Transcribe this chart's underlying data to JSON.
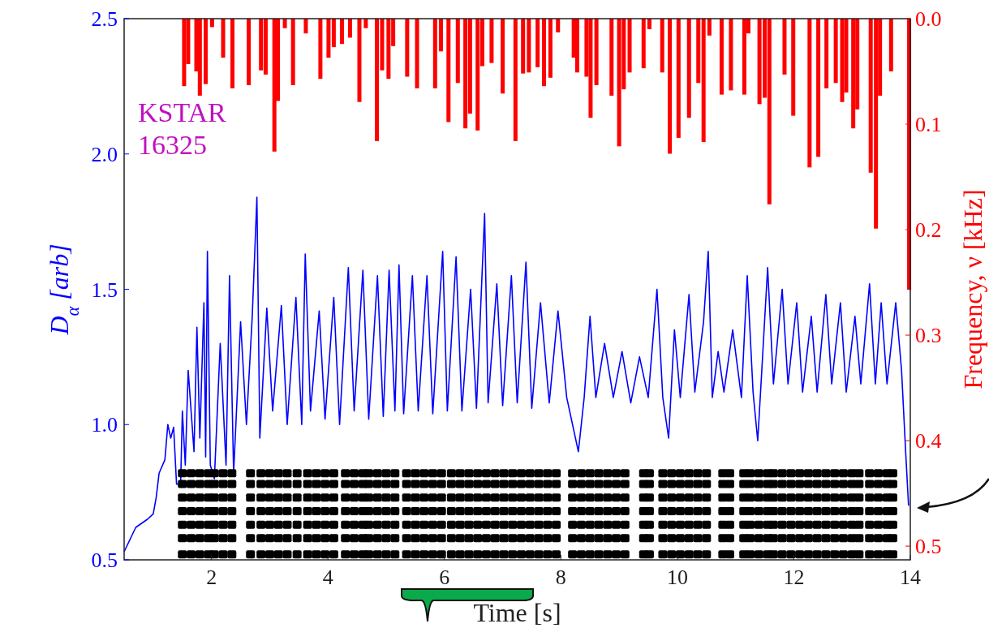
{
  "chart_data": {
    "type": "line",
    "xlabel": "Time [s]",
    "ylabel": "D$_{α}$ [arb]",
    "y2label": "Frequency, ν [kHz]",
    "annotations": [
      "KSTAR",
      "16325"
    ],
    "xlim": [
      0.5,
      14
    ],
    "xticks": [
      2,
      4,
      6,
      8,
      10,
      12,
      14
    ],
    "ylim": [
      0.5,
      2.5
    ],
    "yticks": [
      {
        "value": 0.5,
        "label": "0.5"
      },
      {
        "value": 1,
        "label": "1.0"
      },
      {
        "value": 1.5,
        "label": "1.5"
      },
      {
        "value": 2,
        "label": "2.0"
      },
      {
        "value": 2.5,
        "label": "2.5"
      }
    ],
    "y2lim": [
      0.513,
      0
    ],
    "y2ticks": [
      {
        "value": 0,
        "label": "0.0"
      },
      {
        "value": 0.1,
        "label": "0.1"
      },
      {
        "value": 0.2,
        "label": "0.2"
      },
      {
        "value": 0.3,
        "label": "0.3"
      },
      {
        "value": 0.4,
        "label": "0.4"
      },
      {
        "value": 0.5,
        "label": "0.5"
      }
    ],
    "grid": false,
    "x": [
      1.5,
      1.65,
      1.8,
      1.95,
      2.05,
      2.2,
      2.35,
      2.67,
      2.85,
      3.0,
      3.15,
      3.3,
      3.47,
      3.65,
      3.8,
      3.95,
      4.1,
      4.3,
      4.45,
      4.6,
      4.7,
      4.85,
      5.0,
      5.15,
      5.35,
      5.5,
      5.65,
      5.8,
      5.95,
      6.12,
      6.27,
      6.42,
      6.57,
      6.72,
      6.87,
      7.02,
      7.17,
      7.32,
      7.47,
      7.62,
      7.77,
      7.92,
      8.2,
      8.35,
      8.5,
      8.65,
      8.8,
      8.95,
      9.1,
      9.42,
      9.52,
      9.75,
      9.9,
      10.05,
      10.2,
      10.35,
      10.5,
      10.78,
      10.9,
      11.14,
      11.25,
      11.4,
      11.55,
      11.65,
      11.8,
      11.95,
      12.1,
      12.25,
      12.4,
      12.55,
      12.7,
      12.85,
      13.0,
      13.12,
      13.3,
      13.45,
      13.6,
      13.7
    ],
    "series": [
      {
        "color": "#0000ff",
        "x": [
          0.5,
          0.7,
          0.9,
          1.0,
          1.05,
          1.1,
          1.2,
          1.25,
          1.3,
          1.35,
          1.4,
          1.47,
          1.5,
          1.55,
          1.6,
          1.7,
          1.75,
          1.8,
          1.87,
          1.9,
          1.93,
          1.98,
          2.05,
          2.15,
          2.25,
          2.31,
          2.38,
          2.5,
          2.6,
          2.7,
          2.78,
          2.83,
          2.95,
          3.05,
          3.2,
          3.3,
          3.45,
          3.55,
          3.61,
          3.7,
          3.85,
          3.95,
          4.1,
          4.2,
          4.35,
          4.45,
          4.6,
          4.7,
          4.85,
          4.95,
          5.05,
          5.15,
          5.22,
          5.3,
          5.45,
          5.55,
          5.7,
          5.8,
          5.97,
          6.05,
          6.2,
          6.3,
          6.45,
          6.55,
          6.69,
          6.75,
          6.9,
          7.0,
          7.15,
          7.25,
          7.4,
          7.5,
          7.65,
          7.8,
          7.95,
          8.1,
          8.3,
          8.4,
          8.5,
          8.6,
          8.75,
          8.9,
          9.05,
          9.2,
          9.35,
          9.5,
          9.65,
          9.75,
          9.85,
          9.95,
          10.05,
          10.2,
          10.3,
          10.45,
          10.53,
          10.6,
          10.7,
          10.8,
          10.95,
          11.1,
          11.2,
          11.3,
          11.38,
          11.45,
          11.55,
          11.65,
          11.8,
          11.9,
          12.05,
          12.15,
          12.3,
          12.4,
          12.55,
          12.65,
          12.8,
          12.9,
          13.05,
          13.15,
          13.3,
          13.4,
          13.5,
          13.6,
          13.75,
          13.85,
          13.92,
          13.97
        ],
        "values": [
          0.53,
          0.62,
          0.65,
          0.67,
          0.73,
          0.82,
          0.87,
          1.0,
          0.95,
          0.99,
          0.78,
          0.78,
          1.05,
          0.85,
          1.2,
          0.9,
          1.36,
          0.95,
          1.45,
          0.88,
          1.64,
          0.85,
          0.8,
          1.3,
          0.85,
          1.55,
          0.82,
          1.38,
          1.0,
          1.4,
          1.84,
          0.95,
          1.43,
          1.05,
          1.44,
          1.0,
          1.47,
          1.0,
          1.63,
          1.05,
          1.42,
          1.02,
          1.47,
          1.0,
          1.58,
          1.05,
          1.57,
          1.02,
          1.55,
          1.03,
          1.57,
          1.05,
          1.59,
          1.04,
          1.55,
          1.05,
          1.55,
          1.04,
          1.64,
          1.05,
          1.62,
          1.05,
          1.5,
          1.06,
          1.78,
          1.08,
          1.52,
          1.07,
          1.55,
          1.08,
          1.6,
          1.06,
          1.45,
          1.08,
          1.42,
          1.1,
          0.9,
          1.1,
          1.4,
          1.1,
          1.3,
          1.1,
          1.27,
          1.08,
          1.25,
          1.1,
          1.5,
          1.1,
          0.95,
          1.35,
          1.1,
          1.48,
          1.12,
          1.38,
          1.64,
          1.1,
          1.27,
          1.12,
          1.35,
          1.1,
          1.55,
          1.12,
          0.94,
          1.2,
          1.58,
          1.15,
          1.5,
          1.15,
          1.45,
          1.12,
          1.4,
          1.12,
          1.48,
          1.15,
          1.45,
          1.12,
          1.4,
          1.15,
          1.52,
          1.15,
          1.45,
          1.15,
          1.45,
          1.2,
          0.9,
          0.7
        ]
      },
      {
        "type": "bar",
        "axis": "y2",
        "color": "#ff0000",
        "x": [
          1.53,
          1.6,
          1.74,
          1.8,
          1.9,
          2.01,
          2.2,
          2.36,
          2.64,
          2.85,
          2.93,
          3.08,
          3.14,
          3.26,
          3.4,
          3.62,
          3.87,
          4.01,
          4.1,
          4.24,
          4.38,
          4.54,
          4.65,
          4.84,
          4.93,
          5.04,
          5.12,
          5.36,
          5.53,
          5.84,
          5.94,
          6.07,
          6.23,
          6.36,
          6.44,
          6.57,
          6.65,
          6.81,
          7.0,
          7.22,
          7.35,
          7.45,
          7.6,
          7.71,
          7.82,
          7.95,
          8.22,
          8.28,
          8.44,
          8.51,
          8.61,
          8.87,
          9.0,
          9.08,
          9.18,
          9.42,
          9.52,
          9.74,
          9.87,
          10.02,
          10.2,
          10.36,
          10.45,
          10.55,
          10.76,
          10.92,
          11.15,
          11.22,
          11.41,
          11.5,
          11.58,
          11.84,
          11.99,
          12.27,
          12.42,
          12.56,
          12.72,
          12.83,
          12.9,
          13.02,
          13.09,
          13.32,
          13.41,
          13.48,
          13.67,
          13.98
        ],
        "values": [
          0.064,
          0.043,
          0.05,
          0.073,
          0.062,
          0.008,
          0.037,
          0.066,
          0.063,
          0.049,
          0.053,
          0.126,
          0.078,
          0.009,
          0.063,
          0.014,
          0.057,
          0.037,
          0.027,
          0.024,
          0.018,
          0.079,
          0.009,
          0.116,
          0.049,
          0.057,
          0.026,
          0.055,
          0.066,
          0.066,
          0.031,
          0.098,
          0.061,
          0.104,
          0.09,
          0.106,
          0.045,
          0.042,
          0.071,
          0.116,
          0.052,
          0.051,
          0.046,
          0.064,
          0.056,
          0.013,
          0.037,
          0.051,
          0.055,
          0.094,
          0.063,
          0.073,
          0.121,
          0.067,
          0.051,
          0.047,
          0.01,
          0.051,
          0.128,
          0.113,
          0.094,
          0.061,
          0.117,
          0.016,
          0.072,
          0.068,
          0.072,
          0.014,
          0.081,
          0.075,
          0.176,
          0.053,
          0.092,
          0.141,
          0.131,
          0.066,
          0.061,
          0.079,
          0.07,
          0.104,
          0.086,
          0.146,
          0.199,
          0.073,
          0.05,
          0.257
        ]
      },
      {
        "type": "scatter",
        "color": "#000000",
        "marker": "square",
        "values": [
          0.82,
          0.82,
          0.82,
          0.82,
          0.82,
          0.82,
          0.82,
          0.82,
          0.82,
          0.82,
          0.82,
          0.82,
          0.82,
          0.82,
          0.82,
          0.82,
          0.82,
          0.82,
          0.82,
          0.82,
          0.82,
          0.82,
          0.82,
          0.82,
          0.82,
          0.82,
          0.82,
          0.82,
          0.82,
          0.82,
          0.82,
          0.82,
          0.82,
          0.82,
          0.82,
          0.82,
          0.82,
          0.82,
          0.82,
          0.82,
          0.82,
          0.82,
          0.82,
          0.82,
          0.82,
          0.82,
          0.82,
          0.82,
          0.82,
          0.82,
          0.82,
          0.82,
          0.82,
          0.82,
          0.82,
          0.82,
          0.82,
          0.82,
          0.82,
          0.82,
          0.82,
          0.82,
          0.82,
          0.82,
          0.82,
          0.82,
          0.82,
          0.82,
          0.82,
          0.82,
          0.82,
          0.82,
          0.82,
          0.82,
          0.82,
          0.82,
          0.82,
          0.82
        ]
      },
      {
        "type": "scatter",
        "color": "#000000",
        "marker": "square",
        "values": [
          0.78,
          0.78,
          0.78,
          0.78,
          0.78,
          0.78,
          0.78,
          0.78,
          0.78,
          0.78,
          0.78,
          0.78,
          0.78,
          0.78,
          0.78,
          0.78,
          0.78,
          0.78,
          0.78,
          0.78,
          0.78,
          0.78,
          0.78,
          0.78,
          0.78,
          0.78,
          0.78,
          0.78,
          0.78,
          0.78,
          0.78,
          0.78,
          0.78,
          0.78,
          0.78,
          0.78,
          0.78,
          0.78,
          0.78,
          0.78,
          0.78,
          0.78,
          0.78,
          0.78,
          0.78,
          0.78,
          0.78,
          0.78,
          0.78,
          0.78,
          0.78,
          0.78,
          0.78,
          0.78,
          0.78,
          0.78,
          0.78,
          0.78,
          0.78,
          0.78,
          0.78,
          0.78,
          0.78,
          0.78,
          0.78,
          0.78,
          0.78,
          0.78,
          0.78,
          0.78,
          0.78,
          0.78,
          0.78,
          0.78,
          0.78,
          0.78,
          0.78,
          0.78
        ]
      },
      {
        "type": "scatter",
        "color": "#000000",
        "marker": "square",
        "values": [
          0.73,
          0.73,
          0.73,
          0.73,
          0.73,
          0.73,
          0.73,
          0.73,
          0.73,
          0.73,
          0.73,
          0.73,
          0.73,
          0.73,
          0.73,
          0.73,
          0.73,
          0.73,
          0.73,
          0.73,
          0.73,
          0.73,
          0.73,
          0.73,
          0.73,
          0.73,
          0.73,
          0.73,
          0.73,
          0.73,
          0.73,
          0.73,
          0.73,
          0.73,
          0.73,
          0.73,
          0.73,
          0.73,
          0.73,
          0.73,
          0.73,
          0.73,
          0.73,
          0.73,
          0.73,
          0.73,
          0.73,
          0.73,
          0.73,
          0.73,
          0.73,
          0.73,
          0.73,
          0.73,
          0.73,
          0.73,
          0.73,
          0.73,
          0.73,
          0.73,
          0.73,
          0.73,
          0.73,
          0.73,
          0.73,
          0.73,
          0.73,
          0.73,
          0.73,
          0.73,
          0.73,
          0.73,
          0.73,
          0.73,
          0.73,
          0.73,
          0.73,
          0.73
        ]
      },
      {
        "type": "scatter",
        "color": "#000000",
        "marker": "square",
        "values": [
          0.68,
          0.68,
          0.68,
          0.68,
          0.68,
          0.68,
          0.68,
          0.68,
          0.68,
          0.68,
          0.68,
          0.68,
          0.68,
          0.68,
          0.68,
          0.68,
          0.68,
          0.68,
          0.68,
          0.68,
          0.68,
          0.68,
          0.68,
          0.68,
          0.68,
          0.68,
          0.68,
          0.68,
          0.68,
          0.68,
          0.68,
          0.68,
          0.68,
          0.68,
          0.68,
          0.68,
          0.68,
          0.68,
          0.68,
          0.68,
          0.68,
          0.68,
          0.68,
          0.68,
          0.68,
          0.68,
          0.68,
          0.68,
          0.68,
          0.68,
          0.68,
          0.68,
          0.68,
          0.68,
          0.68,
          0.68,
          0.68,
          0.68,
          0.68,
          0.68,
          0.68,
          0.68,
          0.68,
          0.68,
          0.68,
          0.68,
          0.68,
          0.68,
          0.68,
          0.68,
          0.68,
          0.68,
          0.68,
          0.68,
          0.68,
          0.68,
          0.68,
          0.68
        ]
      },
      {
        "type": "scatter",
        "color": "#000000",
        "marker": "square",
        "values": [
          0.63,
          0.63,
          0.63,
          0.63,
          0.63,
          0.63,
          0.63,
          0.63,
          0.63,
          0.63,
          0.63,
          0.63,
          0.63,
          0.63,
          0.63,
          0.63,
          0.63,
          0.63,
          0.63,
          0.63,
          0.63,
          0.63,
          0.63,
          0.63,
          0.63,
          0.63,
          0.63,
          0.63,
          0.63,
          0.63,
          0.63,
          0.63,
          0.63,
          0.63,
          0.63,
          0.63,
          0.63,
          0.63,
          0.63,
          0.63,
          0.63,
          0.63,
          0.63,
          0.63,
          0.63,
          0.63,
          0.63,
          0.63,
          0.63,
          0.63,
          0.63,
          0.63,
          0.63,
          0.63,
          0.63,
          0.63,
          0.63,
          0.63,
          0.63,
          0.63,
          0.63,
          0.63,
          0.63,
          0.63,
          0.63,
          0.63,
          0.63,
          0.63,
          0.63,
          0.63,
          0.63,
          0.63,
          0.63,
          0.63,
          0.63,
          0.63,
          0.63,
          0.63
        ]
      },
      {
        "type": "scatter",
        "color": "#000000",
        "marker": "square",
        "values": [
          0.58,
          0.58,
          0.58,
          0.58,
          0.58,
          0.58,
          0.58,
          0.58,
          0.58,
          0.58,
          0.58,
          0.58,
          0.58,
          0.58,
          0.58,
          0.58,
          0.58,
          0.58,
          0.58,
          0.58,
          0.58,
          0.58,
          0.58,
          0.58,
          0.58,
          0.58,
          0.58,
          0.58,
          0.58,
          0.58,
          0.58,
          0.58,
          0.58,
          0.58,
          0.58,
          0.58,
          0.58,
          0.58,
          0.58,
          0.58,
          0.58,
          0.58,
          0.58,
          0.58,
          0.58,
          0.58,
          0.58,
          0.58,
          0.58,
          0.58,
          0.58,
          0.58,
          0.58,
          0.58,
          0.58,
          0.58,
          0.58,
          0.58,
          0.58,
          0.58,
          0.58,
          0.58,
          0.58,
          0.58,
          0.58,
          0.58,
          0.58,
          0.58,
          0.58,
          0.58,
          0.58,
          0.58,
          0.58,
          0.58,
          0.58,
          0.58,
          0.58,
          0.58
        ]
      },
      {
        "type": "scatter",
        "color": "#000000",
        "marker": "square",
        "values": [
          0.52,
          0.52,
          0.52,
          0.52,
          0.52,
          0.52,
          0.52,
          0.52,
          0.52,
          0.52,
          0.52,
          0.52,
          0.52,
          0.52,
          0.52,
          0.52,
          0.52,
          0.52,
          0.52,
          0.52,
          0.52,
          0.52,
          0.52,
          0.52,
          0.52,
          0.52,
          0.52,
          0.52,
          0.52,
          0.52,
          0.52,
          0.52,
          0.52,
          0.52,
          0.52,
          0.52,
          0.52,
          0.52,
          0.52,
          0.52,
          0.52,
          0.52,
          0.52,
          0.52,
          0.52,
          0.52,
          0.52,
          0.52,
          0.52,
          0.52,
          0.52,
          0.52,
          0.52,
          0.52,
          0.52,
          0.52,
          0.52,
          0.52,
          0.52,
          0.52,
          0.52,
          0.52,
          0.52,
          0.52,
          0.52,
          0.52,
          0.52,
          0.52,
          0.52,
          0.52,
          0.52,
          0.52,
          0.52,
          0.52,
          0.52,
          0.52,
          0.52,
          0.52
        ]
      }
    ]
  }
}
